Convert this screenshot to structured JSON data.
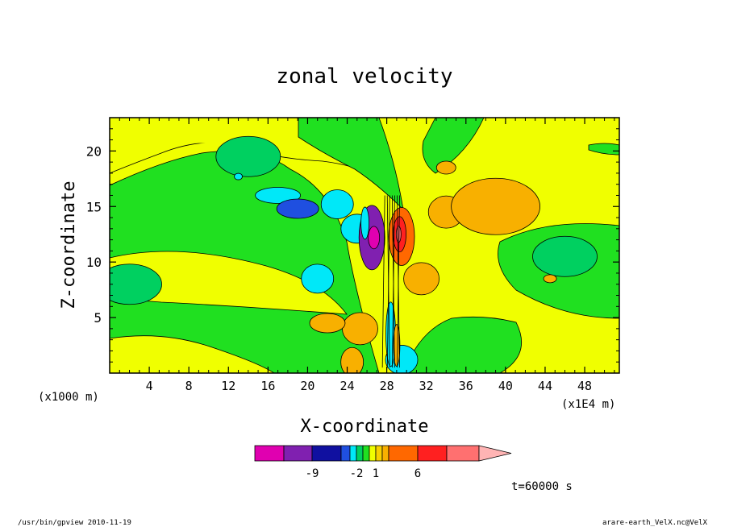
{
  "chart_data": {
    "type": "heatmap",
    "title": "zonal velocity",
    "xlabel": "X-coordinate",
    "ylabel": "Z-coordinate",
    "x_unit_left": "(x1000 m)",
    "x_unit_right": "(x1E4 m)",
    "x_range": [
      0,
      51.5
    ],
    "y_range": [
      0,
      23
    ],
    "x_ticks": [
      4,
      8,
      12,
      16,
      20,
      24,
      28,
      32,
      36,
      40,
      44,
      48
    ],
    "y_ticks": [
      5,
      10,
      15,
      20
    ],
    "colorbar": {
      "levels": [
        -12,
        -9,
        -6,
        -3,
        -2,
        -1,
        0,
        1,
        2,
        3,
        6,
        9,
        12
      ],
      "labels": [
        "-9",
        "-2",
        "1",
        "6"
      ],
      "label_values": [
        -9,
        -2,
        1,
        6
      ],
      "colors": [
        "#e000b0",
        "#8020b0",
        "#1010a0",
        "#1f4fe0",
        "#00e8f8",
        "#00d060",
        "#20e020",
        "#f0ff00",
        "#f8d000",
        "#f8b000",
        "#ff6800",
        "#ff2020",
        "#ff7070",
        "#ffb4b4"
      ]
    },
    "field_regions": [
      {
        "x": 17,
        "z": 16.0,
        "u": -2.4
      },
      {
        "x": 19,
        "z": 14.8,
        "u": -6.0
      },
      {
        "x": 23,
        "z": 15.2,
        "u": -2.5
      },
      {
        "x": 25,
        "z": 13.0,
        "u": -2.5
      },
      {
        "x": 21,
        "z": 8.5,
        "u": -2.5
      },
      {
        "x": 26.5,
        "z": 12.2,
        "u": -10.0
      },
      {
        "x": 29.5,
        "z": 12.3,
        "u": 3.5
      },
      {
        "x": 31.5,
        "z": 8.5,
        "u": 2.5
      },
      {
        "x": 34,
        "z": 14.5,
        "u": 2.5
      },
      {
        "x": 39,
        "z": 15.0,
        "u": 2.2
      },
      {
        "x": 29.5,
        "z": 1.2,
        "u": -2.5
      },
      {
        "x": 25.3,
        "z": 4.0,
        "u": 2.5
      },
      {
        "x": 2,
        "z": 8,
        "u": -1.2
      },
      {
        "x": 46,
        "z": 10.5,
        "u": -1.2
      },
      {
        "x": 14,
        "z": 19.5,
        "u": -1.2
      }
    ],
    "grid": false
  },
  "annotations": {
    "time": "t=60000 s",
    "footer_left": "/usr/bin/gpview  2010-11-19",
    "footer_right": "arare-earth_VelX.nc@VelX"
  }
}
